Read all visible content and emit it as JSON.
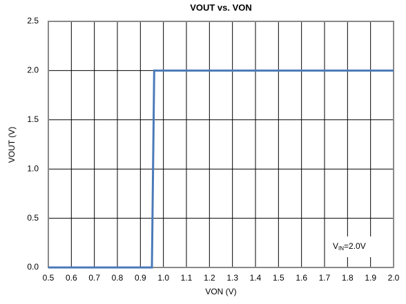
{
  "chart_data": {
    "type": "line",
    "title": "VOUT vs. VON",
    "xlabel": "VON (V)",
    "ylabel": "VOUT (V)",
    "x": [
      0.5,
      0.95,
      0.96,
      2.0
    ],
    "values": [
      0,
      0,
      2,
      2
    ],
    "color": "#4a7ab8",
    "xlim": [
      0.5,
      2.0
    ],
    "xticks": [
      0.5,
      0.6,
      0.7,
      0.8,
      0.9,
      {
        "value": 1,
        "label": "1.0"
      },
      1.1,
      1.2,
      1.3,
      1.4,
      1.5,
      1.6,
      1.7,
      1.8,
      1.9,
      {
        "value": 2,
        "label": "2.0"
      }
    ],
    "ylim": [
      0,
      2.5
    ],
    "yticks": [
      {
        "value": 0,
        "label": "0.0"
      },
      0.5,
      {
        "value": 1,
        "label": "1.0"
      },
      1.5,
      {
        "value": 2,
        "label": "2.0"
      },
      2.5
    ],
    "grid": true,
    "annotation": [
      "V",
      "IN",
      "=2.0V"
    ]
  }
}
